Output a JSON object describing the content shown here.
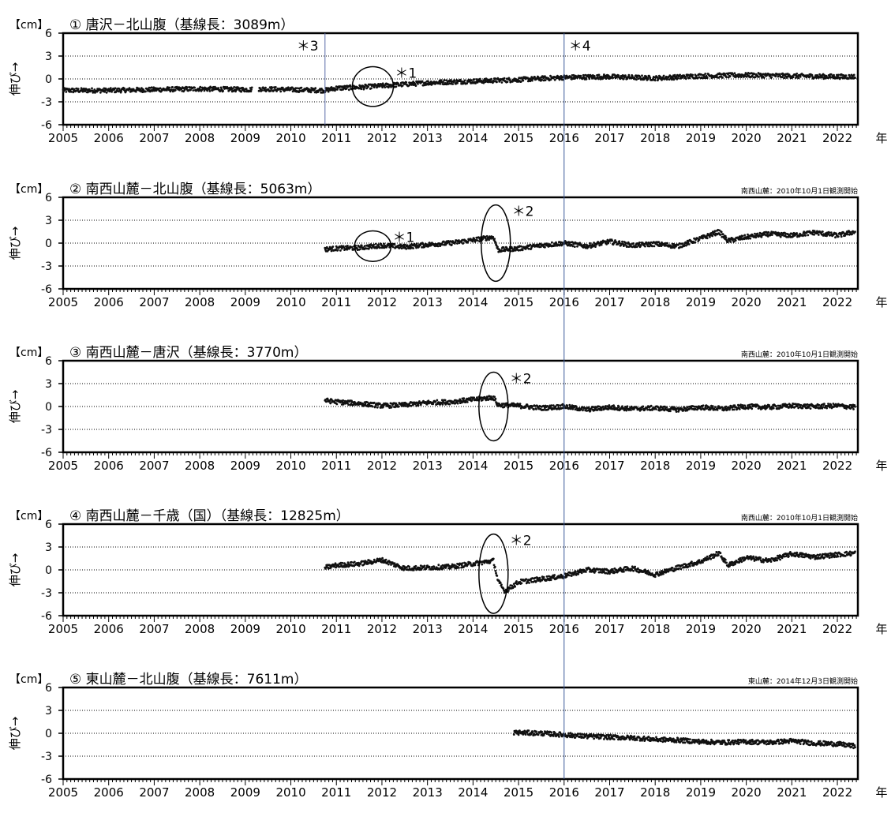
{
  "chart_data": {
    "type": "scatter",
    "unit_label": "【cm】",
    "ylabel": "伸び→",
    "xunit": "年",
    "xlim": [
      2005,
      2022.45
    ],
    "ylim": [
      -6,
      6
    ],
    "yticks": [
      "6",
      "3",
      "0",
      "-3",
      "-6"
    ],
    "xticks": [
      "2005",
      "2006",
      "2007",
      "2008",
      "2009",
      "2010",
      "2011",
      "2012",
      "2013",
      "2014",
      "2015",
      "2016",
      "2017",
      "2018",
      "2019",
      "2020",
      "2021",
      "2022"
    ],
    "gridlines_y": [
      3,
      0,
      -3
    ],
    "grid": "dotted horizontal",
    "vertical_marks": [
      {
        "x": 2010.75,
        "label": "＊3",
        "color": "#5a6aa8"
      },
      {
        "x": 2016.0,
        "label": "＊4",
        "color": "#3a5a9a"
      }
    ],
    "panels": [
      {
        "title": "① 唐沢－北山腹（基線長：3089m）",
        "note": "",
        "series": [
          {
            "x": [
              2005.0,
              2006.0,
              2007.0,
              2008.0,
              2009.1,
              2009.3,
              2010.0,
              2010.75,
              2011.0,
              2011.5,
              2012.0,
              2012.5,
              2013.0,
              2014.0,
              2015.0,
              2016.0,
              2017.0,
              2018.0,
              2019.0,
              2020.0,
              2021.0,
              2022.0,
              2022.4
            ],
            "y": [
              -1.5,
              -1.5,
              -1.4,
              -1.3,
              -1.4,
              -1.3,
              -1.4,
              -1.5,
              -1.2,
              -1.1,
              -0.9,
              -0.7,
              -0.5,
              -0.3,
              -0.1,
              0.2,
              0.3,
              0.1,
              0.4,
              0.5,
              0.4,
              0.3,
              0.3
            ]
          }
        ],
        "gaps": [
          [
            2009.15,
            2009.3
          ]
        ],
        "annotations": [
          {
            "label": "＊1",
            "x": 2011.8,
            "y": -1.0,
            "rx": 0.45,
            "ry": 2.6
          }
        ]
      },
      {
        "title": "② 南西山麓－北山腹（基線長：5063m）",
        "note": "南西山麓：2010年10月1日観測開始",
        "series": [
          {
            "x": [
              2010.75,
              2011.0,
              2011.5,
              2012.0,
              2012.5,
              2013.0,
              2013.5,
              2014.0,
              2014.45,
              2014.55,
              2015.0,
              2015.5,
              2016.0,
              2016.5,
              2017.0,
              2017.5,
              2018.0,
              2018.5,
              2019.0,
              2019.4,
              2019.6,
              2020.0,
              2020.5,
              2021.0,
              2021.5,
              2022.0,
              2022.4
            ],
            "y": [
              -0.8,
              -0.7,
              -0.6,
              -0.3,
              -0.5,
              -0.2,
              0.0,
              0.4,
              0.8,
              -0.9,
              -0.7,
              -0.3,
              0.0,
              -0.4,
              0.2,
              -0.3,
              -0.1,
              -0.4,
              0.6,
              1.5,
              0.3,
              0.8,
              1.2,
              1.0,
              1.4,
              1.0,
              1.5
            ]
          }
        ],
        "gaps": [],
        "annotations": [
          {
            "label": "＊1",
            "x": 2011.8,
            "y": -0.4,
            "rx": 0.4,
            "ry": 2.0
          },
          {
            "label": "＊2",
            "x": 2014.5,
            "y": 0.0,
            "rx": 0.32,
            "ry": 5.0
          }
        ]
      },
      {
        "title": "③ 南西山麓－唐沢（基線長：3770m）",
        "note": "南西山麓：2010年10月1日観測開始",
        "series": [
          {
            "x": [
              2010.75,
              2011.0,
              2011.5,
              2012.0,
              2012.5,
              2013.0,
              2013.5,
              2014.0,
              2014.45,
              2014.55,
              2015.0,
              2015.5,
              2016.0,
              2016.5,
              2017.0,
              2017.5,
              2018.0,
              2018.5,
              2019.0,
              2019.5,
              2020.0,
              2020.5,
              2021.0,
              2021.5,
              2022.0,
              2022.4
            ],
            "y": [
              0.8,
              0.6,
              0.4,
              0.1,
              0.2,
              0.5,
              0.6,
              0.9,
              1.2,
              0.2,
              0.1,
              -0.2,
              0.0,
              -0.4,
              -0.1,
              -0.3,
              -0.2,
              -0.4,
              -0.1,
              -0.3,
              0.0,
              -0.1,
              0.1,
              0.0,
              0.1,
              -0.1
            ]
          }
        ],
        "gaps": [],
        "annotations": [
          {
            "label": "＊2",
            "x": 2014.45,
            "y": 0.0,
            "rx": 0.32,
            "ry": 4.5
          }
        ]
      },
      {
        "title": "④ 南西山麓－千歳（国）（基線長：12825m）",
        "note": "南西山麓：2010年10月1日観測開始",
        "series": [
          {
            "x": [
              2010.75,
              2011.0,
              2011.5,
              2012.0,
              2012.5,
              2013.0,
              2013.5,
              2014.0,
              2014.45,
              2014.55,
              2014.7,
              2015.0,
              2015.5,
              2016.0,
              2016.5,
              2017.0,
              2017.5,
              2018.0,
              2018.5,
              2019.0,
              2019.4,
              2019.6,
              2020.0,
              2020.5,
              2021.0,
              2021.5,
              2022.0,
              2022.4
            ],
            "y": [
              0.3,
              0.6,
              0.8,
              1.3,
              0.2,
              0.3,
              0.4,
              0.8,
              1.2,
              -1.5,
              -2.8,
              -1.6,
              -1.2,
              -0.8,
              0.0,
              -0.2,
              0.2,
              -0.6,
              0.3,
              1.1,
              2.2,
              0.6,
              1.6,
              1.2,
              2.1,
              1.7,
              2.0,
              2.2
            ]
          }
        ],
        "gaps": [],
        "annotations": [
          {
            "label": "＊2",
            "x": 2014.45,
            "y": -0.5,
            "rx": 0.32,
            "ry": 5.2
          }
        ]
      },
      {
        "title": "⑤ 東山麓－北山腹（基線長：7611m）",
        "note": "東山麓：2014年12月3日観測開始",
        "series": [
          {
            "x": [
              2014.9,
              2015.5,
              2016.0,
              2016.5,
              2017.0,
              2017.5,
              2018.0,
              2018.5,
              2019.0,
              2019.5,
              2020.0,
              2020.5,
              2021.0,
              2021.5,
              2022.0,
              2022.4
            ],
            "y": [
              0.1,
              0.0,
              -0.2,
              -0.4,
              -0.5,
              -0.6,
              -0.8,
              -0.9,
              -1.1,
              -1.2,
              -1.1,
              -1.2,
              -1.0,
              -1.3,
              -1.4,
              -1.7
            ]
          }
        ],
        "gaps": [],
        "annotations": []
      }
    ]
  }
}
